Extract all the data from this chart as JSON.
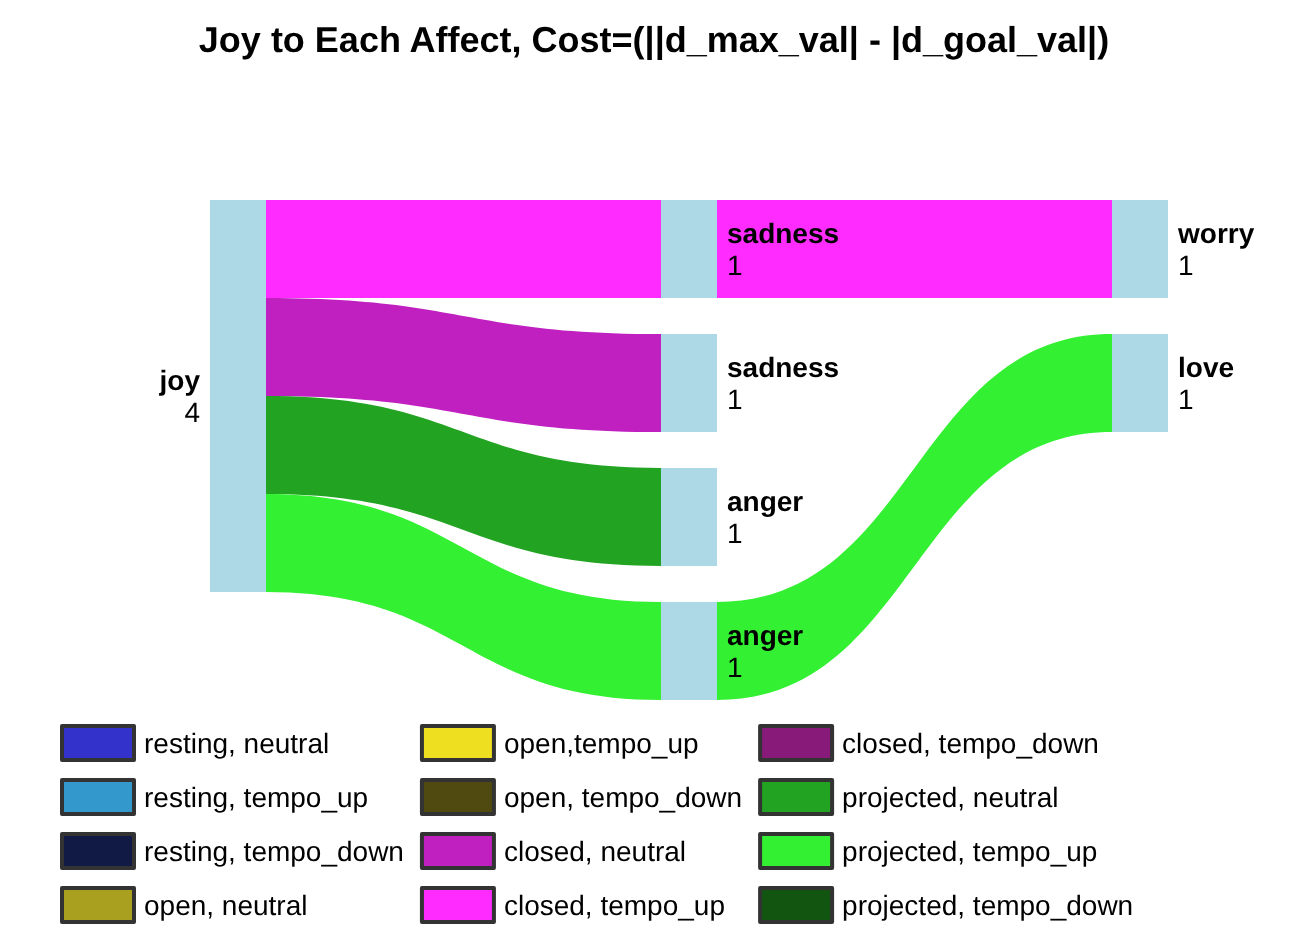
{
  "chart_data": {
    "type": "other",
    "title": "Joy to Each Affect, Cost=(||d_max_val| - |d_goal_val|)",
    "categories": [
      "joy",
      "sadness",
      "worry",
      "sadness",
      "anger",
      "anger",
      "love"
    ],
    "values": [
      4,
      1,
      1,
      1,
      1,
      1,
      1
    ],
    "colors": [
      "#add8e6",
      "#ff2bff",
      "#ff2bff",
      "#c020c0",
      "#22a422",
      "#33f033",
      "#33f033"
    ],
    "data_labels": true,
    "series": [
      {
        "name": "resting, neutral",
        "color": "#3333cc",
        "values": [
          null,
          null,
          null,
          null,
          null,
          null,
          null
        ]
      },
      {
        "name": "resting, tempo_up",
        "color": "#3399cc",
        "values": [
          null,
          null,
          null,
          null,
          null,
          null,
          null
        ]
      },
      {
        "name": "resting, tempo_down",
        "color": "#111a44",
        "values": [
          null,
          null,
          null,
          null,
          null,
          null,
          null
        ]
      },
      {
        "name": "open, neutral",
        "color": "#aaa020",
        "values": [
          null,
          null,
          null,
          null,
          null,
          null,
          null
        ]
      },
      {
        "name": "open,tempo_up",
        "color": "#eee020",
        "values": [
          null,
          null,
          null,
          null,
          null,
          null,
          null
        ]
      },
      {
        "name": "open, tempo_down",
        "color": "#504a10",
        "values": [
          null,
          null,
          null,
          null,
          null,
          null,
          null
        ]
      },
      {
        "name": "closed, neutral",
        "color": "#c020c0",
        "values": [
          null,
          null,
          null,
          null,
          null,
          null,
          null
        ]
      },
      {
        "name": "closed, tempo_up",
        "color": "#ff2bff",
        "values": [
          null,
          null,
          null,
          null,
          null,
          null,
          null
        ]
      },
      {
        "name": "closed, tempo_down",
        "color": "#881a7a",
        "values": [
          null,
          null,
          null,
          null,
          null,
          null,
          null
        ]
      },
      {
        "name": "projected, neutral",
        "color": "#22a422",
        "values": [
          null,
          null,
          null,
          null,
          null,
          null,
          null
        ]
      },
      {
        "name": "projected, tempo_up",
        "color": "#33f033",
        "values": [
          null,
          null,
          null,
          null,
          null,
          null,
          null
        ]
      },
      {
        "name": "projected, tempo_down",
        "color": "#115511",
        "values": [
          null,
          null,
          null,
          null,
          null,
          null,
          null
        ]
      }
    ],
    "legend": "bottom"
  }
}
